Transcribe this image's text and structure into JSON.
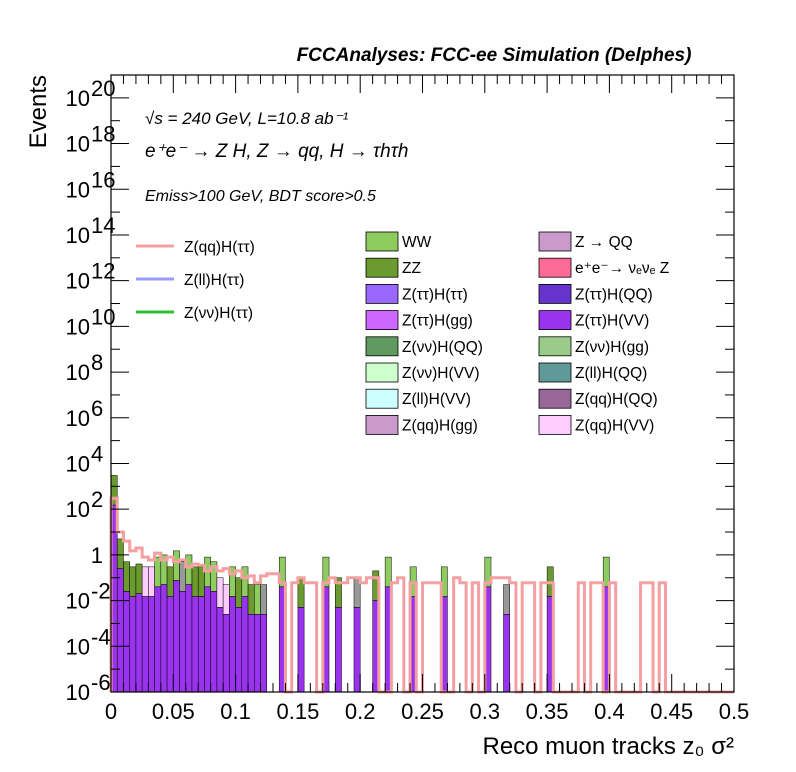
{
  "chart_data": {
    "type": "bar",
    "title": "FCCAnalyses: FCC-ee Simulation (Delphes)",
    "xlabel": "Reco muon tracks z₀ σ²",
    "ylabel": "Events",
    "xlim": [
      0,
      0.5
    ],
    "ylim": [
      1e-06,
      1e+21
    ],
    "y_scale": "log",
    "x_ticks": [
      "0",
      "0.05",
      "0.1",
      "0.15",
      "0.2",
      "0.25",
      "0.3",
      "0.35",
      "0.4",
      "0.45",
      "0.5"
    ],
    "y_ticks": [
      {
        "base": "10",
        "exp": "-6"
      },
      {
        "base": "10",
        "exp": "-4"
      },
      {
        "base": "10",
        "exp": "-2"
      },
      {
        "base": "1",
        "exp": ""
      },
      {
        "base": "10",
        "exp": "2"
      },
      {
        "base": "10",
        "exp": "4"
      },
      {
        "base": "10",
        "exp": "6"
      },
      {
        "base": "10",
        "exp": "8"
      },
      {
        "base": "10",
        "exp": "10"
      },
      {
        "base": "10",
        "exp": "12"
      },
      {
        "base": "10",
        "exp": "14"
      },
      {
        "base": "10",
        "exp": "16"
      },
      {
        "base": "10",
        "exp": "18"
      },
      {
        "base": "10",
        "exp": "20"
      }
    ],
    "annotations": {
      "line1": "√s = 240 GeV, L=10.8 ab⁻¹",
      "line2": "e⁺e⁻ → Z H, Z → qq, H → τhτh",
      "line3": "Emiss>100 GeV, BDT score>0.5"
    },
    "bin_width": 0.005,
    "stack_bins": [
      {
        "x": 0.0,
        "total": 3000,
        "top": "ZZ"
      },
      {
        "x": 0.005,
        "total": 5,
        "top": "ZZ"
      },
      {
        "x": 0.01,
        "total": 0.5,
        "top": "ZZ"
      },
      {
        "x": 0.015,
        "total": 0.3,
        "top": "ZZ"
      },
      {
        "x": 0.02,
        "total": 0.4,
        "top": "ZZ"
      },
      {
        "x": 0.025,
        "total": 0.3,
        "top": "Z(qq)H(VV)"
      },
      {
        "x": 0.03,
        "total": 0.3,
        "top": "Z(qq)H(VV)"
      },
      {
        "x": 0.035,
        "total": 0.8,
        "top": "WW"
      },
      {
        "x": 0.04,
        "total": 1.0,
        "top": "WW"
      },
      {
        "x": 0.045,
        "total": 0.3,
        "top": "ZZ"
      },
      {
        "x": 0.05,
        "total": 1.5,
        "top": "WW"
      },
      {
        "x": 0.055,
        "total": 0.5,
        "top": "Z(vv)H(QQ)"
      },
      {
        "x": 0.06,
        "total": 1.0,
        "top": "WW"
      },
      {
        "x": 0.065,
        "total": 0.3,
        "top": "ZZ"
      },
      {
        "x": 0.07,
        "total": 0.3,
        "top": "ZZ"
      },
      {
        "x": 0.075,
        "total": 0.8,
        "top": "WW"
      },
      {
        "x": 0.08,
        "total": 0.5,
        "top": "WW"
      },
      {
        "x": 0.085,
        "total": 0.1,
        "top": "Z(qq)H(VV)"
      },
      {
        "x": 0.09,
        "total": 0.05,
        "top": "Z(qq)H(VV)"
      },
      {
        "x": 0.095,
        "total": 0.3,
        "top": "WW"
      },
      {
        "x": 0.1,
        "total": 0.1,
        "top": "ZZ"
      },
      {
        "x": 0.105,
        "total": 0.3,
        "top": "WW"
      },
      {
        "x": 0.11,
        "total": 0.05,
        "top": "ZZ"
      },
      {
        "x": 0.115,
        "total": 0.05,
        "top": "WW"
      },
      {
        "x": 0.12,
        "total": 0.05,
        "top": "Z(tt)H(VV)"
      },
      {
        "x": 0.135,
        "total": 0.8,
        "top": "WW"
      },
      {
        "x": 0.15,
        "total": 0.1,
        "top": "ZZ"
      },
      {
        "x": 0.17,
        "total": 0.8,
        "top": "WW"
      },
      {
        "x": 0.18,
        "total": 0.1,
        "top": "ZZ"
      },
      {
        "x": 0.195,
        "total": 0.1,
        "top": "Z(tt)H(VV)"
      },
      {
        "x": 0.21,
        "total": 0.2,
        "top": "ZZ"
      },
      {
        "x": 0.22,
        "total": 0.8,
        "top": "WW"
      },
      {
        "x": 0.24,
        "total": 0.3,
        "top": "WW"
      },
      {
        "x": 0.265,
        "total": 0.3,
        "top": "WW"
      },
      {
        "x": 0.3,
        "total": 0.8,
        "top": "WW"
      },
      {
        "x": 0.315,
        "total": 0.05,
        "top": "Z(tt)H(VV)"
      },
      {
        "x": 0.35,
        "total": 0.3,
        "top": "ZZ"
      },
      {
        "x": 0.395,
        "total": 0.8,
        "top": "WW"
      }
    ],
    "series_line": [
      {
        "name": "Z(qq)H(ττ)",
        "color": "#f4a0a0",
        "steps": [
          [
            0,
            0.005,
            300
          ],
          [
            0.005,
            0.01,
            10
          ],
          [
            0.01,
            0.015,
            4
          ],
          [
            0.015,
            0.02,
            1.5
          ],
          [
            0.02,
            0.025,
            2
          ],
          [
            0.025,
            0.03,
            0.8
          ],
          [
            0.03,
            0.035,
            0.6
          ],
          [
            0.035,
            0.04,
            1.2
          ],
          [
            0.04,
            0.045,
            0.6
          ],
          [
            0.045,
            0.05,
            0.8
          ],
          [
            0.05,
            0.055,
            0.5
          ],
          [
            0.055,
            0.06,
            0.6
          ],
          [
            0.06,
            0.065,
            0.3
          ],
          [
            0.065,
            0.07,
            0.4
          ],
          [
            0.07,
            0.075,
            0.35
          ],
          [
            0.075,
            0.08,
            0.2
          ],
          [
            0.08,
            0.085,
            0.3
          ],
          [
            0.085,
            0.09,
            0.2
          ],
          [
            0.09,
            0.095,
            0.25
          ],
          [
            0.095,
            0.1,
            0.15
          ],
          [
            0.1,
            0.105,
            0.2
          ],
          [
            0.105,
            0.11,
            0.1
          ],
          [
            0.11,
            0.115,
            0.12
          ],
          [
            0.115,
            0.12,
            0.06
          ],
          [
            0.12,
            0.125,
            0.12
          ],
          [
            0.125,
            0.135,
            0.15
          ],
          [
            0.135,
            0.14,
            0.06
          ],
          [
            0.14,
            0.145,
            1e-06
          ],
          [
            0.145,
            0.15,
            0.06
          ],
          [
            0.15,
            0.155,
            0.1
          ],
          [
            0.155,
            0.165,
            0.06
          ],
          [
            0.165,
            0.17,
            1e-06
          ],
          [
            0.17,
            0.175,
            0.06
          ],
          [
            0.175,
            0.18,
            0.1
          ],
          [
            0.18,
            0.19,
            0.06
          ],
          [
            0.19,
            0.2,
            0.1
          ],
          [
            0.2,
            0.205,
            0.06
          ],
          [
            0.205,
            0.215,
            0.1
          ],
          [
            0.215,
            0.225,
            1e-06
          ],
          [
            0.225,
            0.23,
            0.06
          ],
          [
            0.23,
            0.235,
            0.1
          ],
          [
            0.235,
            0.24,
            1e-06
          ],
          [
            0.24,
            0.245,
            0.06
          ],
          [
            0.245,
            0.25,
            1e-06
          ],
          [
            0.25,
            0.255,
            0.06
          ],
          [
            0.255,
            0.265,
            0.06
          ],
          [
            0.265,
            0.275,
            1e-06
          ],
          [
            0.275,
            0.28,
            0.1
          ],
          [
            0.28,
            0.285,
            0.06
          ],
          [
            0.285,
            0.29,
            1e-06
          ],
          [
            0.29,
            0.295,
            0.06
          ],
          [
            0.295,
            0.3,
            1e-06
          ],
          [
            0.3,
            0.305,
            0.06
          ],
          [
            0.305,
            0.32,
            0.1
          ],
          [
            0.32,
            0.325,
            0.06
          ],
          [
            0.325,
            0.33,
            1e-06
          ],
          [
            0.33,
            0.34,
            0.06
          ],
          [
            0.34,
            0.345,
            1e-06
          ],
          [
            0.345,
            0.355,
            0.06
          ],
          [
            0.355,
            0.375,
            1e-06
          ],
          [
            0.375,
            0.38,
            0.06
          ],
          [
            0.38,
            0.385,
            1e-06
          ],
          [
            0.385,
            0.395,
            0.06
          ],
          [
            0.395,
            0.4,
            1e-06
          ],
          [
            0.4,
            0.405,
            0.06
          ],
          [
            0.405,
            0.425,
            1e-06
          ],
          [
            0.425,
            0.435,
            0.06
          ],
          [
            0.435,
            0.44,
            1e-06
          ],
          [
            0.44,
            0.445,
            0.06
          ],
          [
            0.445,
            0.5,
            1e-06
          ]
        ]
      },
      {
        "name": "Z(ll)H(ττ)",
        "color": "#9b9bff",
        "steps": []
      },
      {
        "name": "Z(νν)H(ττ)",
        "color": "#33bb33",
        "steps": []
      }
    ],
    "legend_lines": [
      {
        "label": "Z(qq)H(ττ)",
        "color": "#f4a0a0"
      },
      {
        "label": "Z(ll)H(ττ)",
        "color": "#9b9bff"
      },
      {
        "label": "Z(νν)H(ττ)",
        "color": "#33bb33"
      }
    ],
    "legend_fills": [
      {
        "label": "WW",
        "color": "#8fcc5f"
      },
      {
        "label": "Z → QQ",
        "color": "#cc99cc"
      },
      {
        "label": "ZZ",
        "color": "#6b9a2f"
      },
      {
        "label": "e⁺e⁻→ νₑνₑ Z",
        "color": "#ff6b96"
      },
      {
        "label": "Z(ττ)H(ττ)",
        "color": "#9966ff"
      },
      {
        "label": "Z(ττ)H(QQ)",
        "color": "#6633cc"
      },
      {
        "label": "Z(ττ)H(gg)",
        "color": "#cc66ff"
      },
      {
        "label": "Z(ττ)H(VV)",
        "color": "#9933ee"
      },
      {
        "label": "Z(νν)H(QQ)",
        "color": "#5f9a5f"
      },
      {
        "label": "Z(νν)H(gg)",
        "color": "#99cc88"
      },
      {
        "label": "Z(νν)H(VV)",
        "color": "#ccffcc"
      },
      {
        "label": "Z(ll)H(QQ)",
        "color": "#5f9a99"
      },
      {
        "label": "Z(ll)H(VV)",
        "color": "#ccffff"
      },
      {
        "label": "Z(qq)H(QQ)",
        "color": "#996699"
      },
      {
        "label": "Z(qq)H(gg)",
        "color": "#cc99cc"
      },
      {
        "label": "Z(qq)H(VV)",
        "color": "#ffccff"
      }
    ]
  }
}
